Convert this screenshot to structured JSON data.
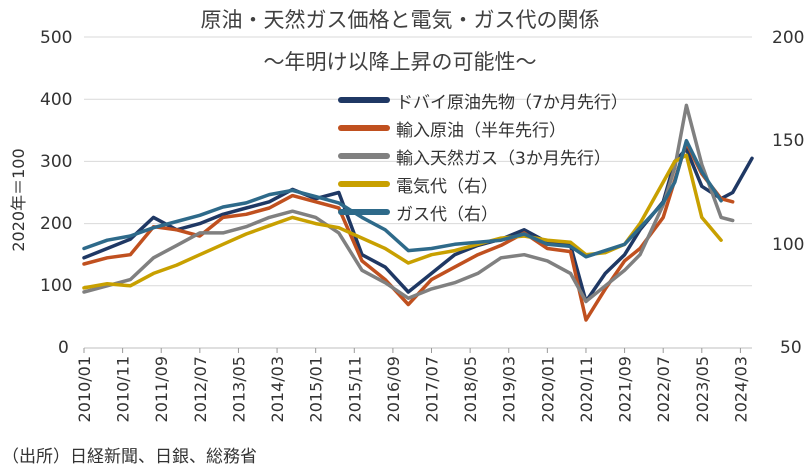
{
  "chart_data": {
    "type": "line",
    "title": "原油・天然ガス価格と電気・ガス代の関係",
    "subtitle": "～年明け以降上昇の可能性～",
    "ylabel": "2020年＝100",
    "ylim_left": [
      0,
      500
    ],
    "yticks_left": [
      "0",
      "100",
      "200",
      "300",
      "400",
      "500"
    ],
    "ylim_right": [
      50,
      200
    ],
    "yticks_right": [
      "50",
      "100",
      "150",
      "200"
    ],
    "x_tick_labels": [
      "2010/01",
      "2010/11",
      "2011/09",
      "2012/07",
      "2013/05",
      "2014/03",
      "2015/01",
      "2015/11",
      "2016/09",
      "2017/07",
      "2018/05",
      "2019/03",
      "2020/01",
      "2020/11",
      "2021/09",
      "2022/07",
      "2023/05",
      "2024/03"
    ],
    "x_range": [
      "2010/01",
      "2024/06"
    ],
    "series": [
      {
        "name": "ドバイ原油先物（7か月先行）",
        "axis": "left",
        "color": "#1f3864",
        "points": [
          [
            "2010/01",
            145
          ],
          [
            "2010/07",
            160
          ],
          [
            "2011/01",
            175
          ],
          [
            "2011/07",
            210
          ],
          [
            "2012/01",
            190
          ],
          [
            "2012/07",
            200
          ],
          [
            "2013/01",
            215
          ],
          [
            "2013/07",
            225
          ],
          [
            "2014/01",
            235
          ],
          [
            "2014/07",
            255
          ],
          [
            "2015/01",
            240
          ],
          [
            "2015/07",
            250
          ],
          [
            "2016/01",
            150
          ],
          [
            "2016/07",
            130
          ],
          [
            "2017/01",
            90
          ],
          [
            "2017/07",
            120
          ],
          [
            "2018/01",
            150
          ],
          [
            "2018/07",
            165
          ],
          [
            "2019/01",
            175
          ],
          [
            "2019/07",
            190
          ],
          [
            "2020/01",
            170
          ],
          [
            "2020/07",
            165
          ],
          [
            "2020/11",
            75
          ],
          [
            "2021/04",
            120
          ],
          [
            "2021/09",
            150
          ],
          [
            "2022/01",
            190
          ],
          [
            "2022/07",
            235
          ],
          [
            "2022/10",
            300
          ],
          [
            "2023/01",
            320
          ],
          [
            "2023/05",
            260
          ],
          [
            "2023/10",
            240
          ],
          [
            "2024/01",
            250
          ],
          [
            "2024/06",
            305
          ]
        ]
      },
      {
        "name": "輸入原油（半年先行）",
        "axis": "left",
        "color": "#c0501f",
        "points": [
          [
            "2010/01",
            135
          ],
          [
            "2010/07",
            145
          ],
          [
            "2011/01",
            150
          ],
          [
            "2011/07",
            195
          ],
          [
            "2012/01",
            190
          ],
          [
            "2012/07",
            180
          ],
          [
            "2013/01",
            210
          ],
          [
            "2013/07",
            215
          ],
          [
            "2014/01",
            225
          ],
          [
            "2014/07",
            245
          ],
          [
            "2015/01",
            235
          ],
          [
            "2015/07",
            225
          ],
          [
            "2016/01",
            140
          ],
          [
            "2016/07",
            110
          ],
          [
            "2017/01",
            70
          ],
          [
            "2017/07",
            110
          ],
          [
            "2018/01",
            130
          ],
          [
            "2018/07",
            150
          ],
          [
            "2019/01",
            165
          ],
          [
            "2019/07",
            185
          ],
          [
            "2020/01",
            160
          ],
          [
            "2020/07",
            155
          ],
          [
            "2020/11",
            45
          ],
          [
            "2021/04",
            95
          ],
          [
            "2021/09",
            140
          ],
          [
            "2022/01",
            160
          ],
          [
            "2022/07",
            210
          ],
          [
            "2022/10",
            270
          ],
          [
            "2023/01",
            330
          ],
          [
            "2023/05",
            280
          ],
          [
            "2023/10",
            240
          ],
          [
            "2024/01",
            235
          ]
        ]
      },
      {
        "name": "輸入天然ガス（3か月先行）",
        "axis": "left",
        "color": "#808080",
        "points": [
          [
            "2010/01",
            90
          ],
          [
            "2010/07",
            100
          ],
          [
            "2011/01",
            110
          ],
          [
            "2011/07",
            145
          ],
          [
            "2012/01",
            165
          ],
          [
            "2012/07",
            185
          ],
          [
            "2013/01",
            185
          ],
          [
            "2013/07",
            195
          ],
          [
            "2014/01",
            210
          ],
          [
            "2014/07",
            220
          ],
          [
            "2015/01",
            210
          ],
          [
            "2015/07",
            185
          ],
          [
            "2016/01",
            125
          ],
          [
            "2016/07",
            105
          ],
          [
            "2017/01",
            80
          ],
          [
            "2017/07",
            95
          ],
          [
            "2018/01",
            105
          ],
          [
            "2018/07",
            120
          ],
          [
            "2019/01",
            145
          ],
          [
            "2019/07",
            150
          ],
          [
            "2020/01",
            140
          ],
          [
            "2020/07",
            120
          ],
          [
            "2020/11",
            75
          ],
          [
            "2021/04",
            100
          ],
          [
            "2021/09",
            125
          ],
          [
            "2022/01",
            150
          ],
          [
            "2022/07",
            230
          ],
          [
            "2022/10",
            290
          ],
          [
            "2023/01",
            390
          ],
          [
            "2023/05",
            295
          ],
          [
            "2023/10",
            210
          ],
          [
            "2024/01",
            205
          ]
        ]
      },
      {
        "name": "電気代（右）",
        "axis": "right",
        "color": "#c8a000",
        "points": [
          [
            "2010/01",
            79
          ],
          [
            "2010/07",
            81
          ],
          [
            "2011/01",
            80
          ],
          [
            "2011/07",
            86
          ],
          [
            "2012/01",
            90
          ],
          [
            "2012/07",
            95
          ],
          [
            "2013/01",
            100
          ],
          [
            "2013/07",
            105
          ],
          [
            "2014/01",
            109
          ],
          [
            "2014/07",
            113
          ],
          [
            "2015/01",
            110
          ],
          [
            "2015/07",
            108
          ],
          [
            "2016/01",
            103
          ],
          [
            "2016/07",
            98
          ],
          [
            "2017/01",
            91
          ],
          [
            "2017/07",
            95
          ],
          [
            "2018/01",
            97
          ],
          [
            "2018/07",
            100
          ],
          [
            "2019/01",
            103
          ],
          [
            "2019/07",
            104
          ],
          [
            "2020/01",
            102
          ],
          [
            "2020/07",
            101
          ],
          [
            "2020/11",
            95
          ],
          [
            "2021/04",
            96
          ],
          [
            "2021/09",
            100
          ],
          [
            "2022/01",
            110
          ],
          [
            "2022/07",
            130
          ],
          [
            "2022/10",
            140
          ],
          [
            "2023/01",
            143
          ],
          [
            "2023/05",
            113
          ],
          [
            "2023/10",
            102
          ]
        ]
      },
      {
        "name": "ガス代（右）",
        "axis": "right",
        "color": "#2e6a8a",
        "points": [
          [
            "2010/01",
            98
          ],
          [
            "2010/07",
            102
          ],
          [
            "2011/01",
            104
          ],
          [
            "2011/07",
            108
          ],
          [
            "2012/01",
            111
          ],
          [
            "2012/07",
            114
          ],
          [
            "2013/01",
            118
          ],
          [
            "2013/07",
            120
          ],
          [
            "2014/01",
            124
          ],
          [
            "2014/07",
            126
          ],
          [
            "2015/01",
            123
          ],
          [
            "2015/07",
            120
          ],
          [
            "2016/01",
            113
          ],
          [
            "2016/07",
            107
          ],
          [
            "2017/01",
            97
          ],
          [
            "2017/07",
            98
          ],
          [
            "2018/01",
            100
          ],
          [
            "2018/07",
            101
          ],
          [
            "2019/01",
            102
          ],
          [
            "2019/07",
            105
          ],
          [
            "2020/01",
            100
          ],
          [
            "2020/07",
            99
          ],
          [
            "2020/11",
            94
          ],
          [
            "2021/04",
            97
          ],
          [
            "2021/09",
            100
          ],
          [
            "2022/01",
            108
          ],
          [
            "2022/07",
            120
          ],
          [
            "2022/10",
            130
          ],
          [
            "2023/01",
            150
          ],
          [
            "2023/05",
            135
          ],
          [
            "2023/10",
            121
          ]
        ]
      }
    ],
    "legend_position": "top-center"
  },
  "source_note": "（出所）日経新聞、日銀、総務省"
}
